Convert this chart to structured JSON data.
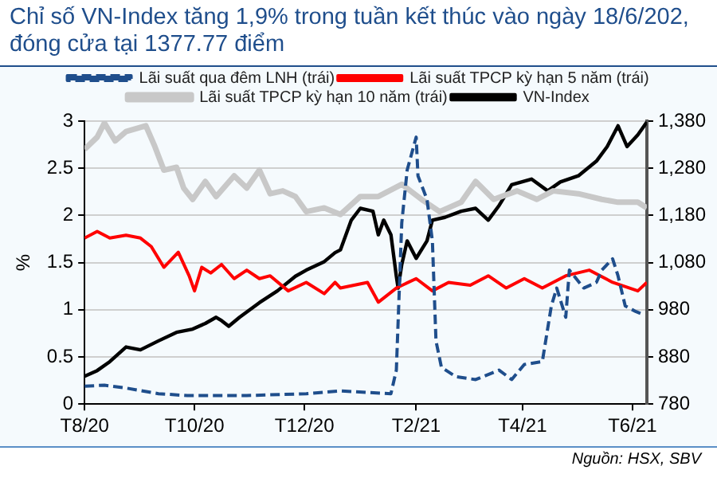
{
  "chart_data": {
    "type": "line",
    "title": "Chỉ số VN-Index tăng 1,9% trong tuần kết thúc vào ngày 18/6/202, đóng cửa tại 1377.77 điểm",
    "ylabel": "%",
    "annotations": [
      "Nguồn: HSX, SBV"
    ],
    "legend": "top",
    "grid": "y",
    "marker": "none",
    "xlim": [
      "2020-08-01",
      "2021-06-09"
    ],
    "xticks": [
      {
        "value": "2020-08-01",
        "label": "T8/20"
      },
      {
        "value": "2020-10-01",
        "label": "T10/20"
      },
      {
        "value": "2020-12-01",
        "label": "T12/20"
      },
      {
        "value": "2021-02-01",
        "label": "T2/21"
      },
      {
        "value": "2021-04-01",
        "label": "T4/21"
      },
      {
        "value": "2021-06-01",
        "label": "T6/21"
      }
    ],
    "ylim": [
      0,
      3
    ],
    "yticks": [
      0,
      0.5,
      1,
      1.5,
      2,
      2.5,
      3
    ],
    "y2lim": [
      780,
      1380
    ],
    "y2ticks": [
      {
        "value": 780,
        "label": "780"
      },
      {
        "value": 880,
        "label": "880"
      },
      {
        "value": 980,
        "label": "980"
      },
      {
        "value": 1080,
        "label": "1,080"
      },
      {
        "value": 1180,
        "label": "1,180"
      },
      {
        "value": 1280,
        "label": "1,280"
      },
      {
        "value": 1380,
        "label": "1,380"
      }
    ],
    "series": [
      {
        "name": "Lãi suất qua đêm LNH (trái)",
        "color": "#1f4e8c",
        "line_style": "dashed",
        "x": [
          "2020-08-01",
          "2020-08-12",
          "2020-08-24",
          "2020-09-11",
          "2020-09-27",
          "2020-10-30",
          "2020-12-02",
          "2020-12-21",
          "2021-01-18",
          "2021-01-21",
          "2021-01-24",
          "2021-01-27",
          "2021-02-01",
          "2021-02-02",
          "2021-02-07",
          "2021-02-10",
          "2021-02-12",
          "2021-02-15",
          "2021-02-23",
          "2021-03-06",
          "2021-03-19",
          "2021-03-26",
          "2021-04-02",
          "2021-04-12",
          "2021-04-17",
          "2021-04-20",
          "2021-04-25",
          "2021-04-27",
          "2021-05-05",
          "2021-05-12",
          "2021-05-15",
          "2021-05-21",
          "2021-05-24",
          "2021-05-28",
          "2021-06-03",
          "2021-06-07"
        ],
        "values": [
          0.19,
          0.2,
          0.17,
          0.11,
          0.09,
          0.09,
          0.11,
          0.14,
          0.11,
          0.36,
          1.92,
          2.48,
          2.83,
          2.42,
          2.17,
          1.73,
          0.67,
          0.39,
          0.29,
          0.26,
          0.36,
          0.26,
          0.42,
          0.45,
          1.04,
          1.23,
          0.92,
          1.42,
          1.23,
          1.29,
          1.42,
          1.54,
          1.36,
          1.04,
          0.98,
          0.95
        ]
      },
      {
        "name": "Lãi suất TPCP kỳ hạn 5 năm (trái)",
        "color": "#ff0000",
        "x": [
          "2020-08-01",
          "2020-08-08",
          "2020-08-15",
          "2020-08-24",
          "2020-09-01",
          "2020-09-07",
          "2020-09-14",
          "2020-09-22",
          "2020-09-28",
          "2020-10-01",
          "2020-10-05",
          "2020-10-10",
          "2020-10-16",
          "2020-10-23",
          "2020-10-30",
          "2020-11-06",
          "2020-11-12",
          "2020-11-22",
          "2020-12-02",
          "2020-12-12",
          "2020-12-18",
          "2020-12-21",
          "2021-01-05",
          "2021-01-11",
          "2021-01-21",
          "2021-02-01",
          "2021-02-10",
          "2021-02-19",
          "2021-03-03",
          "2021-03-13",
          "2021-03-23",
          "2021-04-02",
          "2021-04-12",
          "2021-04-25",
          "2021-05-08",
          "2021-05-21",
          "2021-06-04",
          "2021-06-09"
        ],
        "values": [
          1.76,
          1.83,
          1.76,
          1.79,
          1.76,
          1.67,
          1.45,
          1.61,
          1.36,
          1.2,
          1.45,
          1.39,
          1.48,
          1.33,
          1.42,
          1.33,
          1.36,
          1.2,
          1.29,
          1.17,
          1.29,
          1.23,
          1.29,
          1.08,
          1.23,
          1.33,
          1.2,
          1.29,
          1.26,
          1.36,
          1.23,
          1.33,
          1.23,
          1.36,
          1.42,
          1.29,
          1.2,
          1.29
        ]
      },
      {
        "name": "Lãi suất TPCP kỳ hạn 10 năm (trái)",
        "color": "#c8c8c8",
        "x": [
          "2020-08-01",
          "2020-08-08",
          "2020-08-12",
          "2020-08-18",
          "2020-08-24",
          "2020-09-04",
          "2020-09-09",
          "2020-09-14",
          "2020-09-21",
          "2020-09-25",
          "2020-09-30",
          "2020-10-07",
          "2020-10-13",
          "2020-10-23",
          "2020-10-30",
          "2020-11-06",
          "2020-11-12",
          "2020-11-19",
          "2020-11-26",
          "2020-12-02",
          "2020-12-12",
          "2020-12-21",
          "2021-01-01",
          "2021-01-11",
          "2021-01-24",
          "2021-02-04",
          "2021-02-14",
          "2021-02-26",
          "2021-03-06",
          "2021-03-16",
          "2021-03-29",
          "2021-04-09",
          "2021-04-18",
          "2021-05-02",
          "2021-05-15",
          "2021-05-24",
          "2021-06-04",
          "2021-06-09"
        ],
        "values": [
          2.7,
          2.83,
          2.98,
          2.79,
          2.89,
          2.95,
          2.73,
          2.48,
          2.51,
          2.29,
          2.17,
          2.36,
          2.2,
          2.42,
          2.29,
          2.48,
          2.23,
          2.26,
          2.2,
          2.04,
          2.08,
          2.01,
          2.2,
          2.2,
          2.33,
          2.17,
          2.04,
          2.14,
          2.36,
          2.17,
          2.26,
          2.17,
          2.26,
          2.23,
          2.17,
          2.14,
          2.14,
          2.08
        ]
      },
      {
        "name": "VN-Index",
        "color": "#000000",
        "axis": "y2",
        "x": [
          "2020-08-01",
          "2020-08-08",
          "2020-08-15",
          "2020-08-24",
          "2020-09-01",
          "2020-09-11",
          "2020-09-21",
          "2020-09-30",
          "2020-10-07",
          "2020-10-13",
          "2020-10-16",
          "2020-10-20",
          "2020-10-26",
          "2020-11-06",
          "2020-11-16",
          "2020-11-26",
          "2020-12-02",
          "2020-12-12",
          "2020-12-18",
          "2020-12-21",
          "2020-12-27",
          "2021-01-01",
          "2021-01-08",
          "2021-01-11",
          "2021-01-14",
          "2021-01-18",
          "2021-01-21",
          "2021-01-22",
          "2021-01-24",
          "2021-01-27",
          "2021-02-01",
          "2021-02-07",
          "2021-02-10",
          "2021-02-17",
          "2021-02-26",
          "2021-03-06",
          "2021-03-13",
          "2021-03-19",
          "2021-03-26",
          "2021-04-06",
          "2021-04-15",
          "2021-04-22",
          "2021-05-02",
          "2021-05-12",
          "2021-05-18",
          "2021-05-24",
          "2021-05-29",
          "2021-06-04",
          "2021-06-09"
        ],
        "values": [
          839,
          851,
          870,
          901,
          895,
          914,
          932,
          939,
          951,
          964,
          957,
          945,
          964,
          995,
          1020,
          1051,
          1064,
          1082,
          1101,
          1107,
          1170,
          1195,
          1189,
          1139,
          1170,
          1139,
          1051,
          1026,
          1076,
          1126,
          1089,
          1126,
          1170,
          1176,
          1189,
          1195,
          1170,
          1201,
          1245,
          1257,
          1232,
          1251,
          1264,
          1295,
          1326,
          1370,
          1326,
          1351,
          1378
        ]
      }
    ]
  }
}
